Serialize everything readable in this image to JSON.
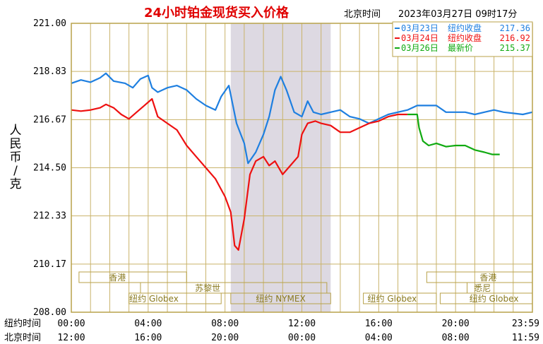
{
  "header": {
    "title": "24小时铂金现货买入价格",
    "tz_label": "北京时间",
    "datetime": "2023年03月27日 09时17分"
  },
  "y_axis_label_chars": [
    "人",
    "民",
    "币",
    "/",
    "克"
  ],
  "row_labels": {
    "ny": "纽约时间",
    "bj": "北京时间"
  },
  "x_ticks_ny": [
    "00:00",
    "04:00",
    "08:00",
    "12:00",
    "16:00",
    "20:00",
    "23:59"
  ],
  "x_ticks_bj": [
    "12:00",
    "16:00",
    "20:00",
    "00:00",
    "04:00",
    "08:00",
    "11:59"
  ],
  "sessions": [
    {
      "label": "香港",
      "row": 0
    },
    {
      "label": "苏黎世",
      "row": 1
    },
    {
      "label": "纽约 Globex",
      "row": 2
    },
    {
      "label": "纽约 NYMEX",
      "row": 2
    },
    {
      "label": "纽约 Globex",
      "row": 2
    },
    {
      "label": "香港",
      "row": 0
    },
    {
      "label": "悉尼",
      "row": 1
    },
    {
      "label": "纽约 Globex",
      "row": 2
    }
  ],
  "legend": [
    {
      "date": "03月23日",
      "kind": "纽约收盘",
      "value": "217.36",
      "color": "#1e7fe0"
    },
    {
      "date": "03月24日",
      "kind": "纽约收盘",
      "value": "216.92",
      "color": "#ee1111"
    },
    {
      "date": "03月26日",
      "kind": "最新价",
      "value": "215.37",
      "color": "#11aa11"
    }
  ],
  "chart_data": {
    "type": "line",
    "title": "24小时铂金现货买入价格",
    "ylabel": "人民币/克",
    "ylim": [
      208.0,
      221.0
    ],
    "yticks": [
      "221.00",
      "218.83",
      "216.67",
      "214.50",
      "212.33",
      "210.17",
      "208.00"
    ],
    "xlim_hours": [
      0,
      24
    ],
    "grid": true,
    "shaded_region_hours": [
      8.3,
      13.5
    ],
    "series": [
      {
        "name": "03月23日 纽约收盘",
        "color": "#1e7fe0",
        "points": [
          [
            0,
            218.3
          ],
          [
            0.5,
            218.45
          ],
          [
            1.0,
            218.35
          ],
          [
            1.5,
            218.55
          ],
          [
            1.8,
            218.75
          ],
          [
            2.2,
            218.4
          ],
          [
            2.8,
            218.3
          ],
          [
            3.2,
            218.1
          ],
          [
            3.6,
            218.5
          ],
          [
            4.0,
            218.65
          ],
          [
            4.2,
            218.1
          ],
          [
            4.5,
            217.9
          ],
          [
            5.0,
            218.1
          ],
          [
            5.5,
            218.2
          ],
          [
            6.0,
            218.0
          ],
          [
            6.5,
            217.6
          ],
          [
            7.0,
            217.3
          ],
          [
            7.5,
            217.1
          ],
          [
            7.8,
            217.7
          ],
          [
            8.2,
            218.2
          ],
          [
            8.6,
            216.5
          ],
          [
            9.0,
            215.6
          ],
          [
            9.2,
            214.7
          ],
          [
            9.6,
            215.2
          ],
          [
            10.0,
            216.0
          ],
          [
            10.3,
            216.8
          ],
          [
            10.6,
            218.0
          ],
          [
            10.9,
            218.6
          ],
          [
            11.2,
            218.0
          ],
          [
            11.6,
            217.0
          ],
          [
            12.0,
            216.8
          ],
          [
            12.3,
            217.5
          ],
          [
            12.6,
            217.0
          ],
          [
            13.0,
            216.9
          ],
          [
            13.5,
            217.0
          ],
          [
            14.0,
            217.1
          ],
          [
            14.5,
            216.8
          ],
          [
            15.0,
            216.7
          ],
          [
            15.5,
            216.5
          ],
          [
            16.0,
            216.7
          ],
          [
            16.5,
            216.9
          ],
          [
            17.0,
            217.0
          ],
          [
            17.5,
            217.1
          ],
          [
            18.0,
            217.3
          ],
          [
            18.5,
            217.3
          ],
          [
            19.0,
            217.3
          ],
          [
            19.5,
            217.0
          ],
          [
            20.0,
            217.0
          ],
          [
            20.5,
            217.0
          ],
          [
            21.0,
            216.9
          ],
          [
            21.5,
            217.0
          ],
          [
            22.0,
            217.1
          ],
          [
            22.5,
            217.0
          ],
          [
            23.0,
            216.95
          ],
          [
            23.5,
            216.9
          ],
          [
            24.0,
            217.0
          ]
        ]
      },
      {
        "name": "03月24日 纽约收盘",
        "color": "#ee1111",
        "points": [
          [
            0,
            217.1
          ],
          [
            0.5,
            217.05
          ],
          [
            1.0,
            217.1
          ],
          [
            1.5,
            217.2
          ],
          [
            1.8,
            217.35
          ],
          [
            2.2,
            217.2
          ],
          [
            2.6,
            216.9
          ],
          [
            3.0,
            216.7
          ],
          [
            3.4,
            217.0
          ],
          [
            3.8,
            217.3
          ],
          [
            4.2,
            217.6
          ],
          [
            4.5,
            216.8
          ],
          [
            5.0,
            216.5
          ],
          [
            5.5,
            216.2
          ],
          [
            6.0,
            215.5
          ],
          [
            6.5,
            215.0
          ],
          [
            7.0,
            214.5
          ],
          [
            7.5,
            214.0
          ],
          [
            8.0,
            213.2
          ],
          [
            8.3,
            212.5
          ],
          [
            8.5,
            211.0
          ],
          [
            8.7,
            210.8
          ],
          [
            9.0,
            212.2
          ],
          [
            9.3,
            214.2
          ],
          [
            9.6,
            214.8
          ],
          [
            10.0,
            215.0
          ],
          [
            10.3,
            214.6
          ],
          [
            10.6,
            214.8
          ],
          [
            11.0,
            214.2
          ],
          [
            11.4,
            214.6
          ],
          [
            11.8,
            215.0
          ],
          [
            12.0,
            216.0
          ],
          [
            12.3,
            216.5
          ],
          [
            12.7,
            216.6
          ],
          [
            13.0,
            216.5
          ],
          [
            13.5,
            216.4
          ],
          [
            14.0,
            216.1
          ],
          [
            14.5,
            216.1
          ],
          [
            15.0,
            216.3
          ],
          [
            15.5,
            216.5
          ],
          [
            16.0,
            216.6
          ],
          [
            16.5,
            216.8
          ],
          [
            17.0,
            216.9
          ],
          [
            17.5,
            216.9
          ]
        ]
      },
      {
        "name": "03月26日 最新价",
        "color": "#11aa11",
        "points": [
          [
            17.5,
            216.9
          ],
          [
            18.0,
            216.9
          ],
          [
            18.1,
            216.3
          ],
          [
            18.3,
            215.7
          ],
          [
            18.6,
            215.5
          ],
          [
            19.0,
            215.6
          ],
          [
            19.5,
            215.45
          ],
          [
            20.0,
            215.5
          ],
          [
            20.5,
            215.5
          ],
          [
            21.0,
            215.3
          ],
          [
            21.5,
            215.2
          ],
          [
            21.9,
            215.1
          ],
          [
            22.3,
            215.1
          ]
        ]
      }
    ]
  }
}
